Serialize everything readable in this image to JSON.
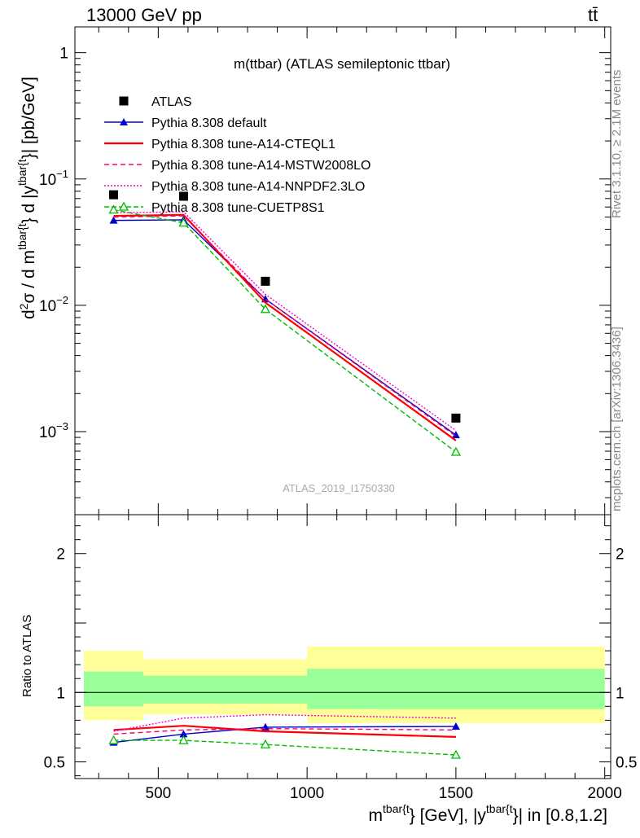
{
  "header": {
    "left": "13000 GeV pp",
    "right": "tt̄"
  },
  "side_labels": {
    "rivet": "Rivet 3.1.10, ≥ 2.1M events",
    "mcplots": "mcplots.cern.ch [arXiv:1306.3436]"
  },
  "chart_data": {
    "type": "line",
    "title": "m(ttbar) (ATLAS semileptonic ttbar)",
    "watermark": "ATLAS_2019_I1750330",
    "xlabel": {
      "main": "m",
      "sup1": "tbar{t",
      "mid": "} [GeV], |y",
      "sup2": "tbar{t",
      "end": "}| in [0.8,1.2]"
    },
    "ylabel": {
      "d2": "d",
      "sup2": "2",
      "sigma": "σ / d m",
      "sup_m": "tbar{t",
      "middle": "} d |y",
      "sup_y": "tbar{t",
      "end": "}| [pb/GeV]"
    },
    "ratio_ylabel": "Ratio to ATLAS",
    "xlim": [
      220,
      2020
    ],
    "x_ticks": [
      500,
      1000,
      1500,
      2000
    ],
    "x_tick_labels": [
      "500",
      "1000",
      "1500",
      "2000"
    ],
    "main_ylim": [
      0.00022,
      1.6
    ],
    "main_yscale": "log",
    "main_y_ticks": [
      0.001,
      0.01,
      0.1,
      1
    ],
    "main_y_tick_labels": [
      {
        "base": "10",
        "exp": "−3"
      },
      {
        "base": "10",
        "exp": "−2"
      },
      {
        "base": "10",
        "exp": "−1"
      },
      {
        "base": "1",
        "exp": ""
      }
    ],
    "ratio_ylim": [
      0.38,
      2.28
    ],
    "ratio_y_ticks": [
      0.5,
      1,
      2
    ],
    "ratio_y_tick_labels": [
      "0.5",
      "1",
      "2"
    ],
    "bins": [
      [
        250,
        450
      ],
      [
        450,
        1000
      ],
      [
        1000,
        2000
      ]
    ],
    "band_bins": [
      [
        250,
        450
      ],
      [
        450,
        1000
      ],
      [
        1000,
        2000
      ]
    ],
    "band_yellow": [
      [
        0.8,
        1.3
      ],
      [
        0.84,
        1.24
      ],
      [
        0.78,
        1.33
      ]
    ],
    "band_green": [
      [
        0.9,
        1.15
      ],
      [
        0.92,
        1.12
      ],
      [
        0.88,
        1.17
      ]
    ],
    "data": {
      "name": "ATLAS",
      "x": [
        350,
        585,
        860,
        1500
      ],
      "y": [
        0.075,
        0.073,
        0.0155,
        0.00128
      ]
    },
    "series": [
      {
        "name": "Pythia 8.308 default",
        "color": "#0000cc",
        "dash": "",
        "marker": "triangle-filled",
        "x": [
          350,
          585,
          860,
          1500
        ],
        "y": [
          0.047,
          0.0475,
          0.0112,
          0.00094
        ],
        "ratio": [
          0.64,
          0.7,
          0.75,
          0.755
        ]
      },
      {
        "name": "Pythia 8.308 tune-A14-CTEQL1",
        "color": "#ff0000",
        "dash": "",
        "marker": "none",
        "x": [
          350,
          585,
          860,
          1500
        ],
        "y": [
          0.051,
          0.052,
          0.0105,
          0.00085
        ],
        "ratio": [
          0.73,
          0.76,
          0.72,
          0.68
        ]
      },
      {
        "name": "Pythia 8.308 tune-A14-MSTW2008LO",
        "color": "#ff0066",
        "dash": "6,4",
        "marker": "none",
        "x": [
          350,
          585,
          860,
          1500
        ],
        "y": [
          0.05,
          0.051,
          0.0112,
          0.00092
        ],
        "ratio": [
          0.7,
          0.73,
          0.74,
          0.73
        ]
      },
      {
        "name": "Pythia 8.308 tune-A14-NNPDF2.3LO",
        "color": "#ff00cc",
        "dash": "2,2",
        "marker": "none",
        "x": [
          350,
          585,
          860,
          1500
        ],
        "y": [
          0.054,
          0.055,
          0.0122,
          0.00102
        ],
        "ratio": [
          0.72,
          0.815,
          0.84,
          0.815
        ]
      },
      {
        "name": "Pythia 8.308 tune-CUETP8S1",
        "color": "#00bb00",
        "dash": "6,3",
        "marker": "triangle-open",
        "x": [
          350,
          585,
          860,
          1500
        ],
        "y": [
          0.057,
          0.045,
          0.0093,
          0.00069
        ],
        "ratio": [
          0.655,
          0.655,
          0.625,
          0.55
        ]
      }
    ],
    "legend_position": "upper-left",
    "grid": false
  }
}
